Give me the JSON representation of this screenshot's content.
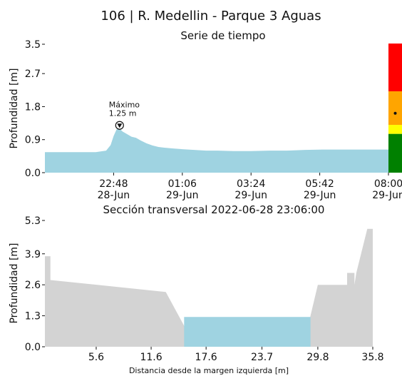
{
  "page": {
    "title": "106 | R. Medellin - Parque 3 Aguas"
  },
  "chart_data": [
    {
      "type": "area",
      "title": "Serie de tiempo",
      "xlabel": "",
      "ylabel": "Profundidad [m]",
      "ylim": [
        0,
        3.5
      ],
      "y_ticks": [
        "0.0",
        "0.9",
        "1.8",
        "2.7",
        "3.5"
      ],
      "x_ticks": [
        {
          "time": "22:48",
          "date": "28-Jun"
        },
        {
          "time": "01:06",
          "date": "29-Jun"
        },
        {
          "time": "03:24",
          "date": "29-Jun"
        },
        {
          "time": "05:42",
          "date": "29-Jun"
        },
        {
          "time": "08:00",
          "date": "29-Jun"
        }
      ],
      "x_unit": "hours",
      "x_range": [
        -2.3,
        9.2
      ],
      "series": [
        {
          "color": "#9fd3e1",
          "x": [
            -2.3,
            -1.6,
            -0.6,
            -0.25,
            -0.1,
            0.0,
            0.1,
            0.2,
            0.3,
            0.45,
            0.6,
            0.75,
            0.9,
            1.1,
            1.3,
            1.5,
            1.7,
            2.0,
            2.3,
            2.7,
            3.1,
            3.5,
            4.0,
            4.6,
            5.2,
            5.8,
            6.4,
            7.0,
            7.6,
            8.2,
            8.7,
            9.2
          ],
          "y": [
            0.56,
            0.56,
            0.56,
            0.6,
            0.75,
            1.0,
            1.18,
            1.2,
            1.12,
            1.05,
            0.98,
            0.95,
            0.88,
            0.8,
            0.74,
            0.7,
            0.68,
            0.66,
            0.64,
            0.62,
            0.6,
            0.6,
            0.59,
            0.59,
            0.6,
            0.6,
            0.62,
            0.63,
            0.63,
            0.63,
            0.63,
            0.63
          ]
        }
      ],
      "annotations": [
        {
          "text": "Máximo",
          "x": 0.2,
          "y": 1.25
        },
        {
          "text": "1.25 m",
          "x": 0.2,
          "y": 1.25
        }
      ],
      "status_scale": [
        {
          "color": "#ff0000",
          "from": 0.63,
          "to": 1.0
        },
        {
          "color": "#ffa500",
          "from": 0.37,
          "to": 0.63
        },
        {
          "color": "#ffff00",
          "from": 0.3,
          "to": 0.37
        },
        {
          "color": "#008000",
          "from": 0.0,
          "to": 0.3
        }
      ],
      "status_marker_level": 0.46
    },
    {
      "type": "area",
      "title": "Sección transversal 2022-06-28 23:06:00",
      "xlabel": "Distancia desde la margen izquierda [m]",
      "ylabel": "Profundidad [m]",
      "xlim": [
        0,
        35.8
      ],
      "ylim": [
        0,
        5.3
      ],
      "x_ticks": [
        "5.6",
        "11.6",
        "17.6",
        "23.7",
        "29.8",
        "35.8"
      ],
      "y_ticks": [
        "0.0",
        "1.3",
        "2.6",
        "3.9",
        "5.3"
      ],
      "water_level": 1.25,
      "water_color": "#9fd3e1",
      "bed_color": "#d3d3d3",
      "bed_profile": {
        "x": [
          0,
          0.6,
          0.6,
          13.2,
          15.6,
          16.0,
          17.8,
          19.8,
          20.5,
          23.5,
          25.0,
          28.2,
          28.6,
          29.0,
          29.8,
          33.0,
          33.0,
          33.8,
          33.8,
          34.0,
          35.2,
          35.8
        ],
        "y": [
          3.8,
          3.8,
          2.8,
          2.3,
          0.6,
          0.0,
          0.05,
          0.0,
          0.15,
          0.0,
          0.0,
          0.0,
          0.45,
          1.3,
          2.6,
          2.6,
          3.1,
          3.1,
          2.6,
          3.1,
          4.95,
          4.95
        ]
      }
    }
  ]
}
